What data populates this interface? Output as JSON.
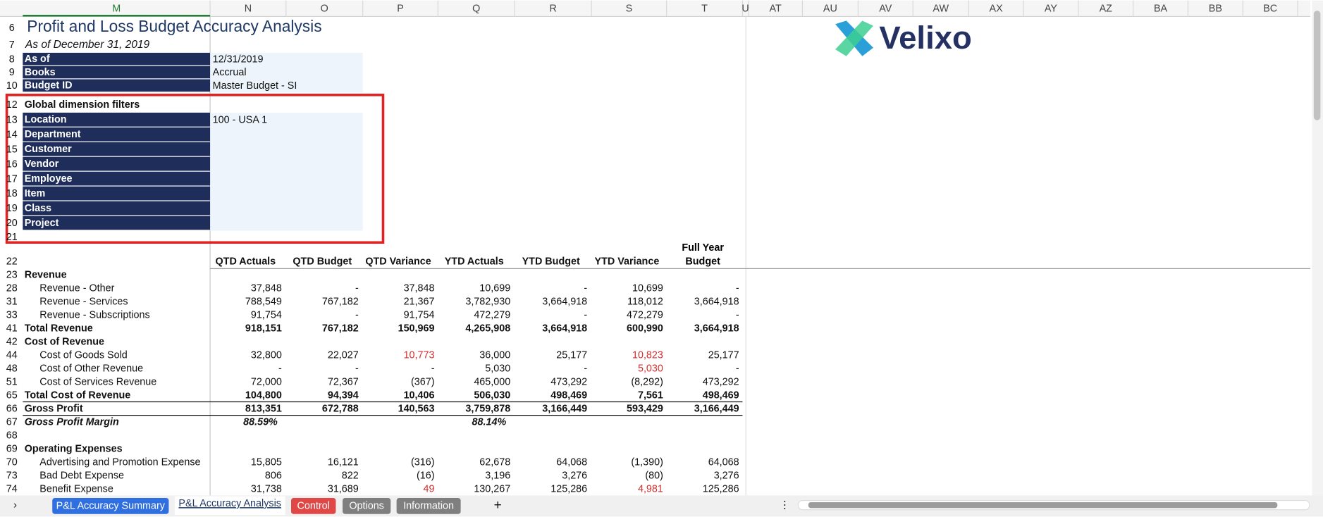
{
  "column_headers": [
    "M",
    "N",
    "O",
    "P",
    "Q",
    "R",
    "S",
    "T",
    "U",
    "AT",
    "AU",
    "AV",
    "AW",
    "AX",
    "AY",
    "AZ",
    "BA",
    "BB",
    "BC"
  ],
  "title": "Profit and Loss Budget Accuracy Analysis",
  "subtitle": "As of December 31, 2019",
  "logo": "Velixo",
  "row_numbers": {
    "title": "6",
    "subtitle": "7",
    "blank": "21"
  },
  "info": [
    {
      "row": "8",
      "label": "As of",
      "value": "12/31/2019"
    },
    {
      "row": "9",
      "label": "Books",
      "value": "Accrual"
    },
    {
      "row": "10",
      "label": "Budget ID",
      "value": "Master Budget - SI"
    }
  ],
  "filters_title": {
    "row": "12",
    "label": "Global dimension filters"
  },
  "filters": [
    {
      "row": "13",
      "label": "Location",
      "value": "100 - USA 1"
    },
    {
      "row": "14",
      "label": "Department"
    },
    {
      "row": "15",
      "label": "Customer"
    },
    {
      "row": "16",
      "label": "Vendor"
    },
    {
      "row": "17",
      "label": "Employee"
    },
    {
      "row": "18",
      "label": "Item"
    },
    {
      "row": "19",
      "label": "Class"
    },
    {
      "row": "20",
      "label": "Project"
    }
  ],
  "table": {
    "row": "22",
    "headers": [
      "QTD Actuals",
      "QTD Budget",
      "QTD Variance",
      "YTD Actuals",
      "YTD Budget",
      "YTD Variance",
      "Full Year Budget"
    ],
    "rows": [
      {
        "row": "23",
        "label": "Revenue",
        "style": "bold"
      },
      {
        "row": "28",
        "label": "Revenue - Other",
        "style": "item",
        "cells": [
          "37,848",
          "-",
          "37,848",
          "10,699",
          "-",
          "10,699",
          "-"
        ]
      },
      {
        "row": "31",
        "label": "Revenue - Services",
        "style": "item",
        "cells": [
          "788,549",
          "767,182",
          "21,367",
          "3,782,930",
          "3,664,918",
          "118,012",
          "3,664,918"
        ]
      },
      {
        "row": "33",
        "label": "Revenue - Subscriptions",
        "style": "item",
        "cells": [
          "91,754",
          "-",
          "91,754",
          "472,279",
          "-",
          "472,279",
          "-"
        ]
      },
      {
        "row": "41",
        "label": "Total Revenue",
        "style": "bold",
        "cells": [
          "918,151",
          "767,182",
          "150,969",
          "4,265,908",
          "3,664,918",
          "600,990",
          "3,664,918"
        ]
      },
      {
        "row": "42",
        "label": "Cost of Revenue",
        "style": "bold"
      },
      {
        "row": "44",
        "label": "Cost of Goods Sold",
        "style": "item",
        "cells": [
          "32,800",
          "22,027",
          {
            "text": "10,773",
            "color": "#d32f2f"
          },
          "36,000",
          "25,177",
          {
            "text": "10,823",
            "color": "#d32f2f"
          },
          "25,177"
        ]
      },
      {
        "row": "48",
        "label": "Cost of Other Revenue",
        "style": "item",
        "cells": [
          "-",
          "-",
          "-",
          "5,030",
          "-",
          {
            "text": "5,030",
            "color": "#d32f2f"
          },
          "-"
        ]
      },
      {
        "row": "51",
        "label": "Cost of Services Revenue",
        "style": "item",
        "cells": [
          "72,000",
          "72,367",
          "(367)",
          "465,000",
          "473,292",
          "(8,292)",
          "473,292"
        ]
      },
      {
        "row": "65",
        "label": "Total Cost of Revenue",
        "style": "bold",
        "cells": [
          "104,800",
          "94,394",
          "10,406",
          "506,030",
          "498,469",
          "7,561",
          "498,469"
        ]
      },
      {
        "row": "66",
        "label": "Gross Profit",
        "style": "bold",
        "cells": [
          "813,351",
          "672,788",
          "140,563",
          "3,759,878",
          "3,166,449",
          "593,429",
          "3,166,449"
        ]
      },
      {
        "row": "67",
        "label": "Gross Profit Margin",
        "style": "bold-italic",
        "cells": [
          "88.59%",
          null,
          null,
          "88.14%",
          null,
          null,
          null
        ]
      },
      {
        "row": "68"
      },
      {
        "row": "69",
        "label": "Operating Expenses",
        "style": "bold"
      },
      {
        "row": "70",
        "label": "Advertising and Promotion Expense",
        "style": "item",
        "cells": [
          "15,805",
          "16,121",
          "(316)",
          "62,678",
          "64,068",
          "(1,390)",
          "64,068"
        ]
      },
      {
        "row": "73",
        "label": "Bad Debt Expense",
        "style": "item",
        "cells": [
          "806",
          "822",
          "(16)",
          "3,196",
          "3,276",
          "(80)",
          "3,276"
        ]
      },
      {
        "row": "74",
        "label": "Benefit Expense",
        "style": "item",
        "cells": [
          "31,738",
          "31,689",
          {
            "text": "49",
            "color": "#d32f2f"
          },
          "130,267",
          "125,286",
          {
            "text": "4,981",
            "color": "#d32f2f"
          },
          "125,286"
        ]
      }
    ]
  },
  "sheet_tabs": [
    {
      "label": "P&L Accuracy Summary",
      "color": "#2f6fe0"
    },
    {
      "label": "P&L Accuracy Analysis",
      "active": true
    },
    {
      "label": "Control",
      "color": "#e04848"
    },
    {
      "label": "Options",
      "color": "#7f7f7f"
    },
    {
      "label": "Information",
      "color": "#7f7f7f"
    }
  ]
}
